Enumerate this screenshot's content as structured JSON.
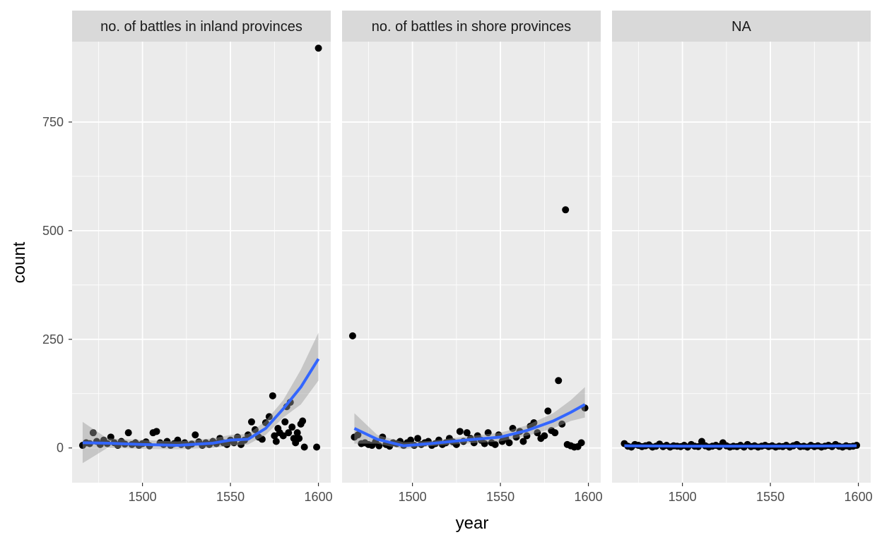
{
  "chart_data": {
    "type": "scatter",
    "xlabel": "year",
    "ylabel": "count",
    "xlim": [
      1460,
      1607
    ],
    "ylim": [
      -80,
      935
    ],
    "x_ticks": [
      1500,
      1550,
      1600
    ],
    "y_ticks": [
      0,
      250,
      500,
      750
    ],
    "grid": true,
    "colors": {
      "panel_bg": "#ebebeb",
      "strip_bg": "#d9d9d9",
      "grid": "#ffffff",
      "point": "#000000",
      "smooth_line": "#3366ff",
      "ribbon": "#999999"
    },
    "facets": [
      {
        "label": "no. of battles in inland provinces",
        "points": [
          [
            1466,
            6
          ],
          [
            1468,
            12
          ],
          [
            1470,
            10
          ],
          [
            1472,
            35
          ],
          [
            1474,
            15
          ],
          [
            1476,
            8
          ],
          [
            1478,
            18
          ],
          [
            1480,
            10
          ],
          [
            1482,
            25
          ],
          [
            1484,
            12
          ],
          [
            1486,
            6
          ],
          [
            1488,
            15
          ],
          [
            1490,
            9
          ],
          [
            1492,
            35
          ],
          [
            1494,
            8
          ],
          [
            1496,
            12
          ],
          [
            1498,
            6
          ],
          [
            1500,
            10
          ],
          [
            1502,
            14
          ],
          [
            1504,
            5
          ],
          [
            1506,
            35
          ],
          [
            1508,
            38
          ],
          [
            1510,
            12
          ],
          [
            1512,
            8
          ],
          [
            1514,
            15
          ],
          [
            1516,
            6
          ],
          [
            1518,
            10
          ],
          [
            1520,
            18
          ],
          [
            1522,
            8
          ],
          [
            1524,
            12
          ],
          [
            1526,
            5
          ],
          [
            1528,
            9
          ],
          [
            1530,
            30
          ],
          [
            1532,
            14
          ],
          [
            1534,
            6
          ],
          [
            1536,
            12
          ],
          [
            1538,
            8
          ],
          [
            1540,
            15
          ],
          [
            1542,
            10
          ],
          [
            1544,
            22
          ],
          [
            1546,
            12
          ],
          [
            1548,
            8
          ],
          [
            1550,
            18
          ],
          [
            1552,
            12
          ],
          [
            1554,
            25
          ],
          [
            1556,
            8
          ],
          [
            1558,
            18
          ],
          [
            1560,
            30
          ],
          [
            1562,
            60
          ],
          [
            1564,
            42
          ],
          [
            1566,
            25
          ],
          [
            1568,
            20
          ],
          [
            1570,
            58
          ],
          [
            1572,
            72
          ],
          [
            1574,
            120
          ],
          [
            1575,
            28
          ],
          [
            1576,
            15
          ],
          [
            1577,
            45
          ],
          [
            1578,
            35
          ],
          [
            1580,
            28
          ],
          [
            1581,
            60
          ],
          [
            1582,
            95
          ],
          [
            1583,
            35
          ],
          [
            1584,
            105
          ],
          [
            1585,
            48
          ],
          [
            1586,
            22
          ],
          [
            1587,
            12
          ],
          [
            1588,
            35
          ],
          [
            1589,
            22
          ],
          [
            1590,
            55
          ],
          [
            1591,
            62
          ],
          [
            1592,
            2
          ],
          [
            1599,
            2
          ],
          [
            1600,
            920
          ]
        ],
        "smooth": [
          [
            1466,
            12
          ],
          [
            1480,
            11
          ],
          [
            1500,
            8
          ],
          [
            1520,
            6
          ],
          [
            1540,
            11
          ],
          [
            1550,
            18
          ],
          [
            1560,
            20
          ],
          [
            1570,
            45
          ],
          [
            1580,
            90
          ],
          [
            1590,
            140
          ],
          [
            1600,
            205
          ]
        ],
        "ribbon": [
          [
            1466,
            -35,
            60
          ],
          [
            1480,
            0,
            22
          ],
          [
            1500,
            -2,
            18
          ],
          [
            1520,
            -3,
            15
          ],
          [
            1540,
            0,
            22
          ],
          [
            1550,
            5,
            30
          ],
          [
            1560,
            8,
            32
          ],
          [
            1570,
            30,
            62
          ],
          [
            1580,
            70,
            110
          ],
          [
            1590,
            100,
            180
          ],
          [
            1600,
            155,
            265
          ]
        ]
      },
      {
        "label": "no. of battles in shore provinces",
        "points": [
          [
            1466,
            258
          ],
          [
            1467,
            25
          ],
          [
            1469,
            30
          ],
          [
            1471,
            10
          ],
          [
            1473,
            12
          ],
          [
            1475,
            8
          ],
          [
            1477,
            6
          ],
          [
            1479,
            14
          ],
          [
            1481,
            5
          ],
          [
            1483,
            25
          ],
          [
            1485,
            8
          ],
          [
            1487,
            4
          ],
          [
            1489,
            12
          ],
          [
            1491,
            10
          ],
          [
            1493,
            15
          ],
          [
            1495,
            6
          ],
          [
            1497,
            12
          ],
          [
            1499,
            18
          ],
          [
            1501,
            6
          ],
          [
            1503,
            22
          ],
          [
            1505,
            8
          ],
          [
            1507,
            12
          ],
          [
            1509,
            15
          ],
          [
            1511,
            6
          ],
          [
            1513,
            10
          ],
          [
            1515,
            18
          ],
          [
            1517,
            8
          ],
          [
            1519,
            12
          ],
          [
            1521,
            22
          ],
          [
            1523,
            14
          ],
          [
            1525,
            8
          ],
          [
            1527,
            38
          ],
          [
            1529,
            15
          ],
          [
            1531,
            35
          ],
          [
            1533,
            22
          ],
          [
            1535,
            12
          ],
          [
            1537,
            28
          ],
          [
            1539,
            18
          ],
          [
            1541,
            10
          ],
          [
            1543,
            35
          ],
          [
            1545,
            12
          ],
          [
            1547,
            8
          ],
          [
            1549,
            30
          ],
          [
            1551,
            15
          ],
          [
            1553,
            22
          ],
          [
            1555,
            12
          ],
          [
            1557,
            45
          ],
          [
            1559,
            25
          ],
          [
            1561,
            38
          ],
          [
            1563,
            15
          ],
          [
            1565,
            28
          ],
          [
            1567,
            50
          ],
          [
            1569,
            58
          ],
          [
            1571,
            35
          ],
          [
            1573,
            22
          ],
          [
            1575,
            28
          ],
          [
            1577,
            85
          ],
          [
            1579,
            40
          ],
          [
            1581,
            35
          ],
          [
            1583,
            155
          ],
          [
            1585,
            55
          ],
          [
            1587,
            548
          ],
          [
            1588,
            8
          ],
          [
            1590,
            5
          ],
          [
            1592,
            2
          ],
          [
            1594,
            3
          ],
          [
            1596,
            12
          ],
          [
            1598,
            92
          ]
        ],
        "smooth": [
          [
            1467,
            45
          ],
          [
            1480,
            20
          ],
          [
            1495,
            5
          ],
          [
            1510,
            10
          ],
          [
            1530,
            18
          ],
          [
            1550,
            25
          ],
          [
            1565,
            40
          ],
          [
            1580,
            62
          ],
          [
            1590,
            82
          ],
          [
            1598,
            100
          ]
        ],
        "ribbon": [
          [
            1467,
            10,
            80
          ],
          [
            1480,
            10,
            30
          ],
          [
            1495,
            -3,
            13
          ],
          [
            1510,
            4,
            16
          ],
          [
            1530,
            10,
            26
          ],
          [
            1550,
            15,
            35
          ],
          [
            1565,
            28,
            52
          ],
          [
            1580,
            45,
            80
          ],
          [
            1590,
            62,
            110
          ],
          [
            1598,
            70,
            140
          ]
        ]
      },
      {
        "label": "NA",
        "points": [
          [
            1467,
            10
          ],
          [
            1469,
            4
          ],
          [
            1471,
            2
          ],
          [
            1473,
            8
          ],
          [
            1475,
            6
          ],
          [
            1477,
            3
          ],
          [
            1479,
            5
          ],
          [
            1481,
            7
          ],
          [
            1483,
            2
          ],
          [
            1485,
            4
          ],
          [
            1487,
            9
          ],
          [
            1489,
            3
          ],
          [
            1491,
            6
          ],
          [
            1493,
            2
          ],
          [
            1495,
            5
          ],
          [
            1497,
            4
          ],
          [
            1499,
            3
          ],
          [
            1501,
            6
          ],
          [
            1503,
            2
          ],
          [
            1505,
            8
          ],
          [
            1507,
            4
          ],
          [
            1509,
            3
          ],
          [
            1511,
            15
          ],
          [
            1513,
            5
          ],
          [
            1515,
            2
          ],
          [
            1517,
            4
          ],
          [
            1519,
            6
          ],
          [
            1521,
            3
          ],
          [
            1523,
            12
          ],
          [
            1525,
            5
          ],
          [
            1527,
            2
          ],
          [
            1529,
            4
          ],
          [
            1531,
            3
          ],
          [
            1533,
            6
          ],
          [
            1535,
            2
          ],
          [
            1537,
            8
          ],
          [
            1539,
            3
          ],
          [
            1541,
            5
          ],
          [
            1543,
            2
          ],
          [
            1545,
            4
          ],
          [
            1547,
            6
          ],
          [
            1549,
            3
          ],
          [
            1551,
            5
          ],
          [
            1553,
            2
          ],
          [
            1555,
            4
          ],
          [
            1557,
            3
          ],
          [
            1559,
            6
          ],
          [
            1561,
            2
          ],
          [
            1563,
            5
          ],
          [
            1565,
            8
          ],
          [
            1567,
            3
          ],
          [
            1569,
            4
          ],
          [
            1571,
            2
          ],
          [
            1573,
            6
          ],
          [
            1575,
            3
          ],
          [
            1577,
            5
          ],
          [
            1579,
            2
          ],
          [
            1581,
            4
          ],
          [
            1583,
            6
          ],
          [
            1585,
            3
          ],
          [
            1587,
            8
          ],
          [
            1589,
            4
          ],
          [
            1591,
            2
          ],
          [
            1593,
            5
          ],
          [
            1595,
            3
          ],
          [
            1597,
            4
          ],
          [
            1599,
            6
          ]
        ],
        "smooth": [
          [
            1467,
            5
          ],
          [
            1500,
            4
          ],
          [
            1530,
            4
          ],
          [
            1560,
            4
          ],
          [
            1599,
            5
          ]
        ],
        "ribbon": [
          [
            1467,
            2,
            8
          ],
          [
            1500,
            2,
            6
          ],
          [
            1530,
            2,
            6
          ],
          [
            1560,
            2,
            6
          ],
          [
            1599,
            2,
            8
          ]
        ]
      }
    ]
  }
}
